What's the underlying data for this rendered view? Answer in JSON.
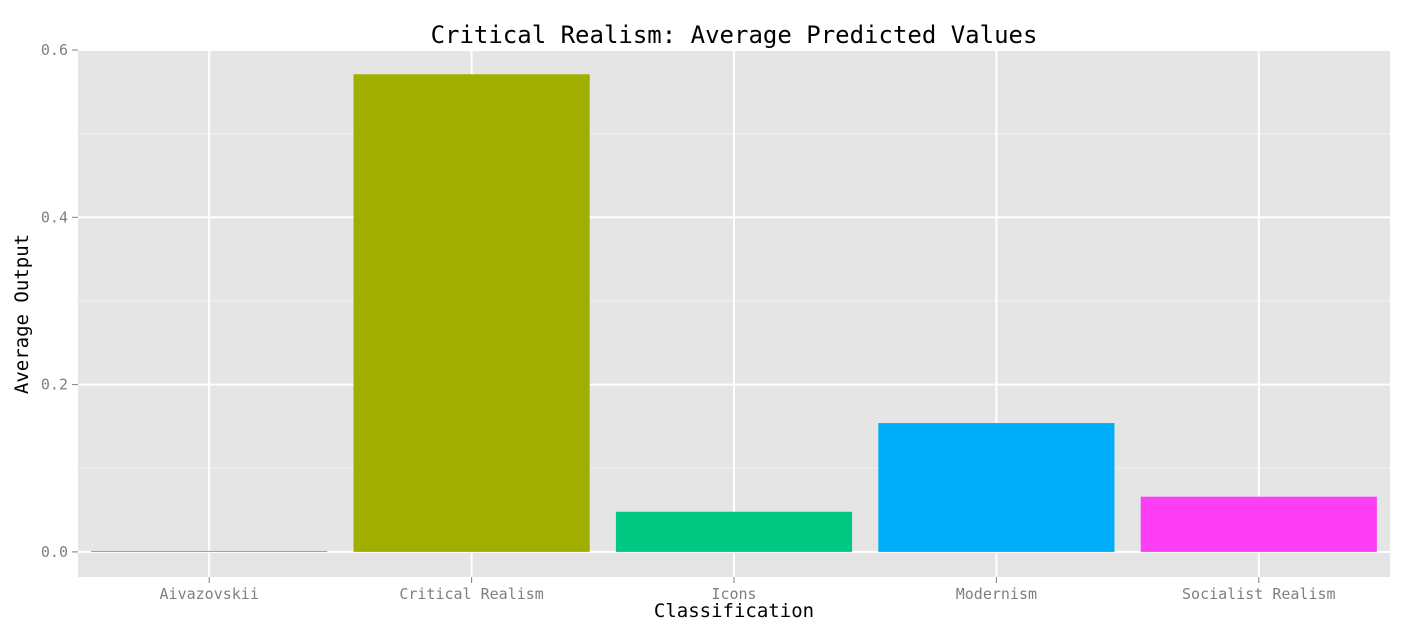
{
  "chart_data": {
    "type": "bar",
    "title": "Critical Realism: Average Predicted Values",
    "xlabel": "Classification",
    "ylabel": "Average Output",
    "categories": [
      "Aivazovskii",
      "Critical Realism",
      "Icons",
      "Modernism",
      "Socialist Realism"
    ],
    "values": [
      0.0005,
      0.571,
      0.048,
      0.154,
      0.066
    ],
    "ylim": [
      -0.03,
      0.6
    ],
    "yticks": [
      0.0,
      0.2,
      0.4,
      0.6
    ],
    "ytick_labels": [
      "0.0",
      "0.2",
      "0.4",
      "0.6"
    ],
    "colors": [
      "#F8766D",
      "#A3A500",
      "#00BF7D",
      "#00B0F6",
      "#E76BF3"
    ],
    "bar_colors_rendered": [
      "#F8766D",
      "#A0AE00",
      "#00C882",
      "#00ADF9",
      "#FD3EF5"
    ],
    "panel_background": "#E5E5E5",
    "grid_color": "#FFFFFF",
    "grid": true,
    "legend": "none"
  }
}
